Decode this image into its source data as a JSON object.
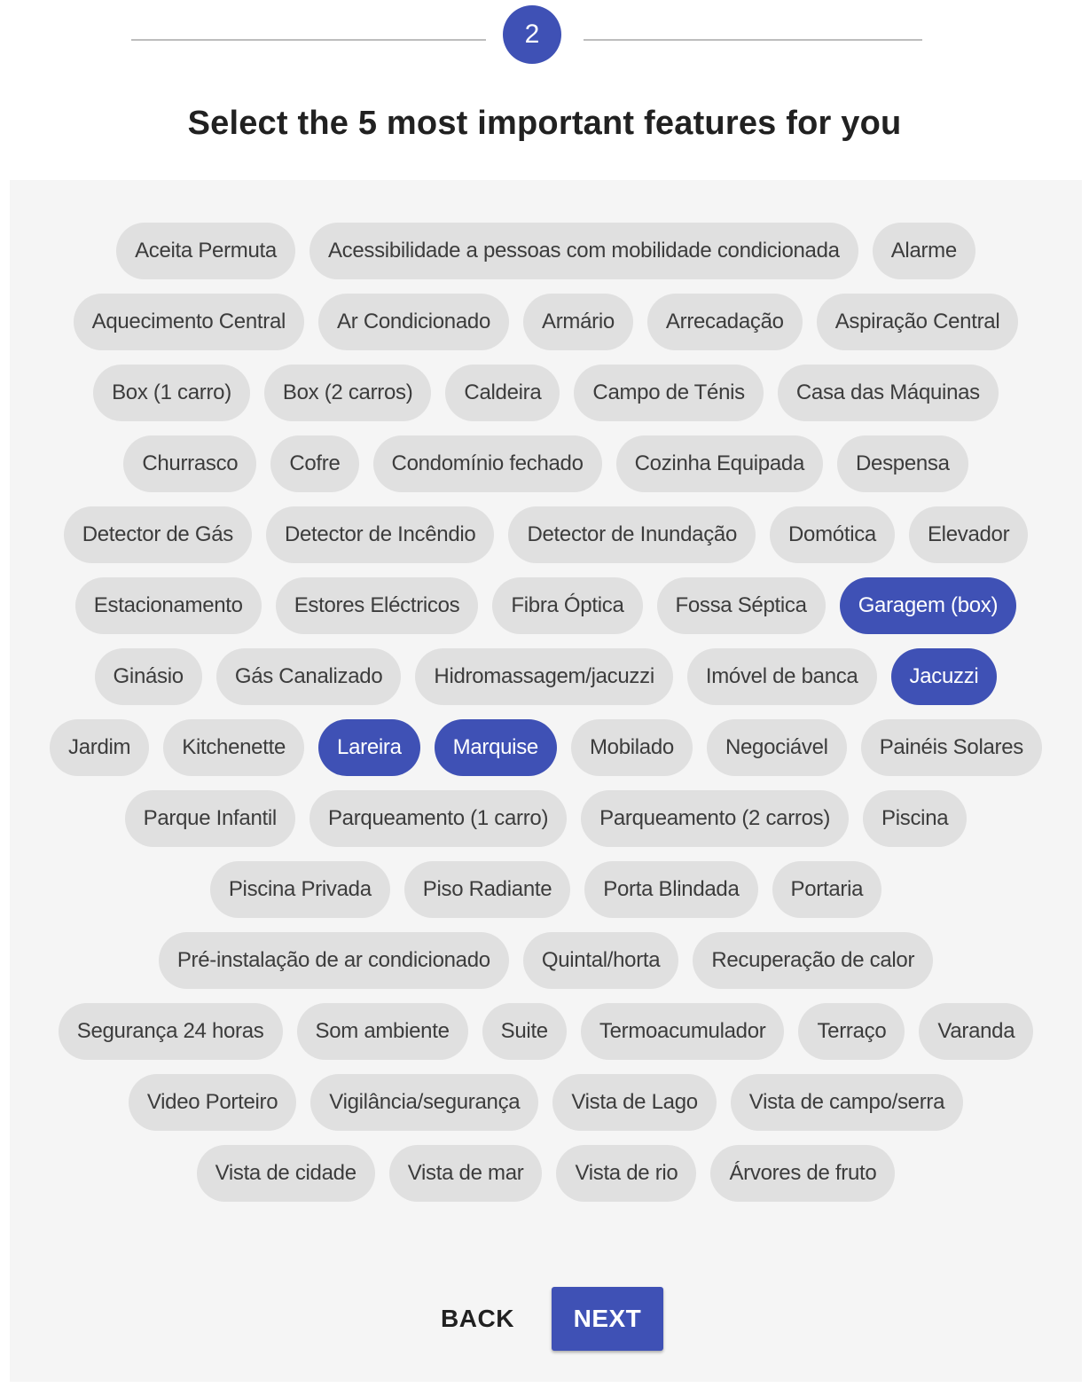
{
  "stepper": {
    "current_step": "2"
  },
  "title": "Select the 5 most important features for you",
  "feature_rows": [
    [
      {
        "label": "Aceita Permuta",
        "selected": false
      },
      {
        "label": "Acessibilidade a pessoas com mobilidade condicionada",
        "selected": false
      },
      {
        "label": "Alarme",
        "selected": false
      }
    ],
    [
      {
        "label": "Aquecimento Central",
        "selected": false
      },
      {
        "label": "Ar Condicionado",
        "selected": false
      },
      {
        "label": "Armário",
        "selected": false
      },
      {
        "label": "Arrecadação",
        "selected": false
      },
      {
        "label": "Aspiração Central",
        "selected": false
      }
    ],
    [
      {
        "label": "Box (1 carro)",
        "selected": false
      },
      {
        "label": "Box (2 carros)",
        "selected": false
      },
      {
        "label": "Caldeira",
        "selected": false
      },
      {
        "label": "Campo de Ténis",
        "selected": false
      },
      {
        "label": "Casa das Máquinas",
        "selected": false
      }
    ],
    [
      {
        "label": "Churrasco",
        "selected": false
      },
      {
        "label": "Cofre",
        "selected": false
      },
      {
        "label": "Condomínio fechado",
        "selected": false
      },
      {
        "label": "Cozinha Equipada",
        "selected": false
      },
      {
        "label": "Despensa",
        "selected": false
      }
    ],
    [
      {
        "label": "Detector de Gás",
        "selected": false
      },
      {
        "label": "Detector de Incêndio",
        "selected": false
      },
      {
        "label": "Detector de Inundação",
        "selected": false
      },
      {
        "label": "Domótica",
        "selected": false
      },
      {
        "label": "Elevador",
        "selected": false
      }
    ],
    [
      {
        "label": "Estacionamento",
        "selected": false
      },
      {
        "label": "Estores Eléctricos",
        "selected": false
      },
      {
        "label": "Fibra Óptica",
        "selected": false
      },
      {
        "label": "Fossa Séptica",
        "selected": false
      },
      {
        "label": "Garagem (box)",
        "selected": true
      }
    ],
    [
      {
        "label": "Ginásio",
        "selected": false
      },
      {
        "label": "Gás Canalizado",
        "selected": false
      },
      {
        "label": "Hidromassagem/jacuzzi",
        "selected": false
      },
      {
        "label": "Imóvel de banca",
        "selected": false
      },
      {
        "label": "Jacuzzi",
        "selected": true
      }
    ],
    [
      {
        "label": "Jardim",
        "selected": false
      },
      {
        "label": "Kitchenette",
        "selected": false
      },
      {
        "label": "Lareira",
        "selected": true
      },
      {
        "label": "Marquise",
        "selected": true
      },
      {
        "label": "Mobilado",
        "selected": false
      },
      {
        "label": "Negociável",
        "selected": false
      },
      {
        "label": "Painéis Solares",
        "selected": false
      }
    ],
    [
      {
        "label": "Parque Infantil",
        "selected": false
      },
      {
        "label": "Parqueamento (1 carro)",
        "selected": false
      },
      {
        "label": "Parqueamento (2 carros)",
        "selected": false
      },
      {
        "label": "Piscina",
        "selected": false
      }
    ],
    [
      {
        "label": "Piscina Privada",
        "selected": false
      },
      {
        "label": "Piso Radiante",
        "selected": false
      },
      {
        "label": "Porta Blindada",
        "selected": false
      },
      {
        "label": "Portaria",
        "selected": false
      }
    ],
    [
      {
        "label": "Pré-instalação de ar condicionado",
        "selected": false
      },
      {
        "label": "Quintal/horta",
        "selected": false
      },
      {
        "label": "Recuperação de calor",
        "selected": false
      }
    ],
    [
      {
        "label": "Segurança 24 horas",
        "selected": false
      },
      {
        "label": "Som ambiente",
        "selected": false
      },
      {
        "label": "Suite",
        "selected": false
      },
      {
        "label": "Termoacumulador",
        "selected": false
      },
      {
        "label": "Terraço",
        "selected": false
      },
      {
        "label": "Varanda",
        "selected": false
      }
    ],
    [
      {
        "label": "Video Porteiro",
        "selected": false
      },
      {
        "label": "Vigilância/segurança",
        "selected": false
      },
      {
        "label": "Vista de Lago",
        "selected": false
      },
      {
        "label": "Vista de campo/serra",
        "selected": false
      }
    ],
    [
      {
        "label": "Vista de cidade",
        "selected": false
      },
      {
        "label": "Vista de mar",
        "selected": false
      },
      {
        "label": "Vista de rio",
        "selected": false
      },
      {
        "label": "Árvores de fruto",
        "selected": false
      }
    ]
  ],
  "actions": {
    "back_label": "BACK",
    "next_label": "NEXT"
  },
  "colors": {
    "accent": "#3f51b5",
    "chip_bg": "#e0e0e0",
    "panel_bg": "#f5f5f5"
  }
}
